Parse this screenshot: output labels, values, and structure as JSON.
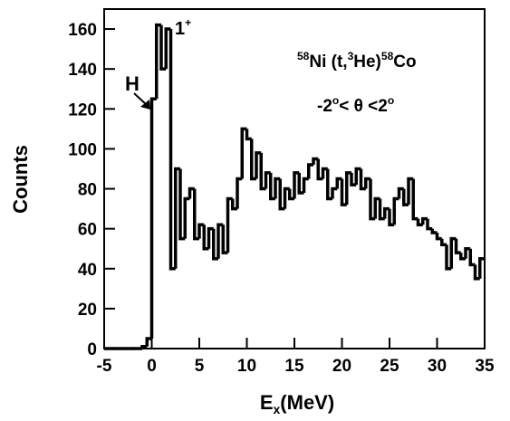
{
  "chart_data": {
    "type": "histogram",
    "color": "#000000",
    "x_label": [
      "E",
      "x",
      "(MeV)"
    ],
    "y_label": "Counts",
    "annotations": {
      "peak": [
        "1",
        "+"
      ],
      "marker": "H",
      "reaction": [
        "58",
        "Ni (t,",
        "3",
        "He)",
        "58",
        "Co"
      ],
      "angle": [
        "-2",
        "o",
        "< θ <2",
        "o"
      ]
    },
    "bins": [
      -5,
      -4.5,
      -4,
      -3.5,
      -3,
      -2.5,
      -2,
      -1.5,
      -1,
      -0.5,
      0,
      0.5,
      1,
      1.5,
      2,
      2.5,
      3,
      3.5,
      4,
      4.5,
      5,
      5.5,
      6,
      6.5,
      7,
      7.5,
      8,
      8.5,
      9,
      9.5,
      10,
      10.5,
      11,
      11.5,
      12,
      12.5,
      13,
      13.5,
      14,
      14.5,
      15,
      15.5,
      16,
      16.5,
      17,
      17.5,
      18,
      18.5,
      19,
      19.5,
      20,
      20.5,
      21,
      21.5,
      22,
      22.5,
      23,
      23.5,
      24,
      24.5,
      25,
      25.5,
      26,
      26.5,
      27,
      27.5,
      28,
      28.5,
      29,
      29.5,
      30,
      30.5,
      31,
      31.5,
      32,
      32.5,
      33,
      33.5,
      34,
      34.5,
      35
    ],
    "values": [
      0,
      0,
      0,
      0,
      0,
      0,
      0,
      0,
      1,
      5,
      125,
      162,
      140,
      160,
      40,
      90,
      55,
      75,
      80,
      55,
      62,
      50,
      60,
      45,
      62,
      48,
      75,
      70,
      85,
      110,
      105,
      85,
      98,
      80,
      88,
      75,
      85,
      70,
      80,
      75,
      88,
      78,
      85,
      92,
      95,
      85,
      90,
      75,
      80,
      85,
      72,
      88,
      82,
      90,
      80,
      85,
      65,
      75,
      65,
      70,
      62,
      75,
      80,
      72,
      85,
      65,
      62,
      65,
      60,
      58,
      55,
      52,
      40,
      55,
      48,
      45,
      50,
      42,
      35,
      45
    ],
    "xlim": [
      -5,
      35
    ],
    "ylim": [
      0,
      170
    ],
    "xticks": [
      -5,
      0,
      5,
      10,
      15,
      20,
      25,
      30,
      35
    ],
    "yticks": [
      0,
      20,
      40,
      60,
      80,
      100,
      120,
      140,
      160
    ]
  }
}
